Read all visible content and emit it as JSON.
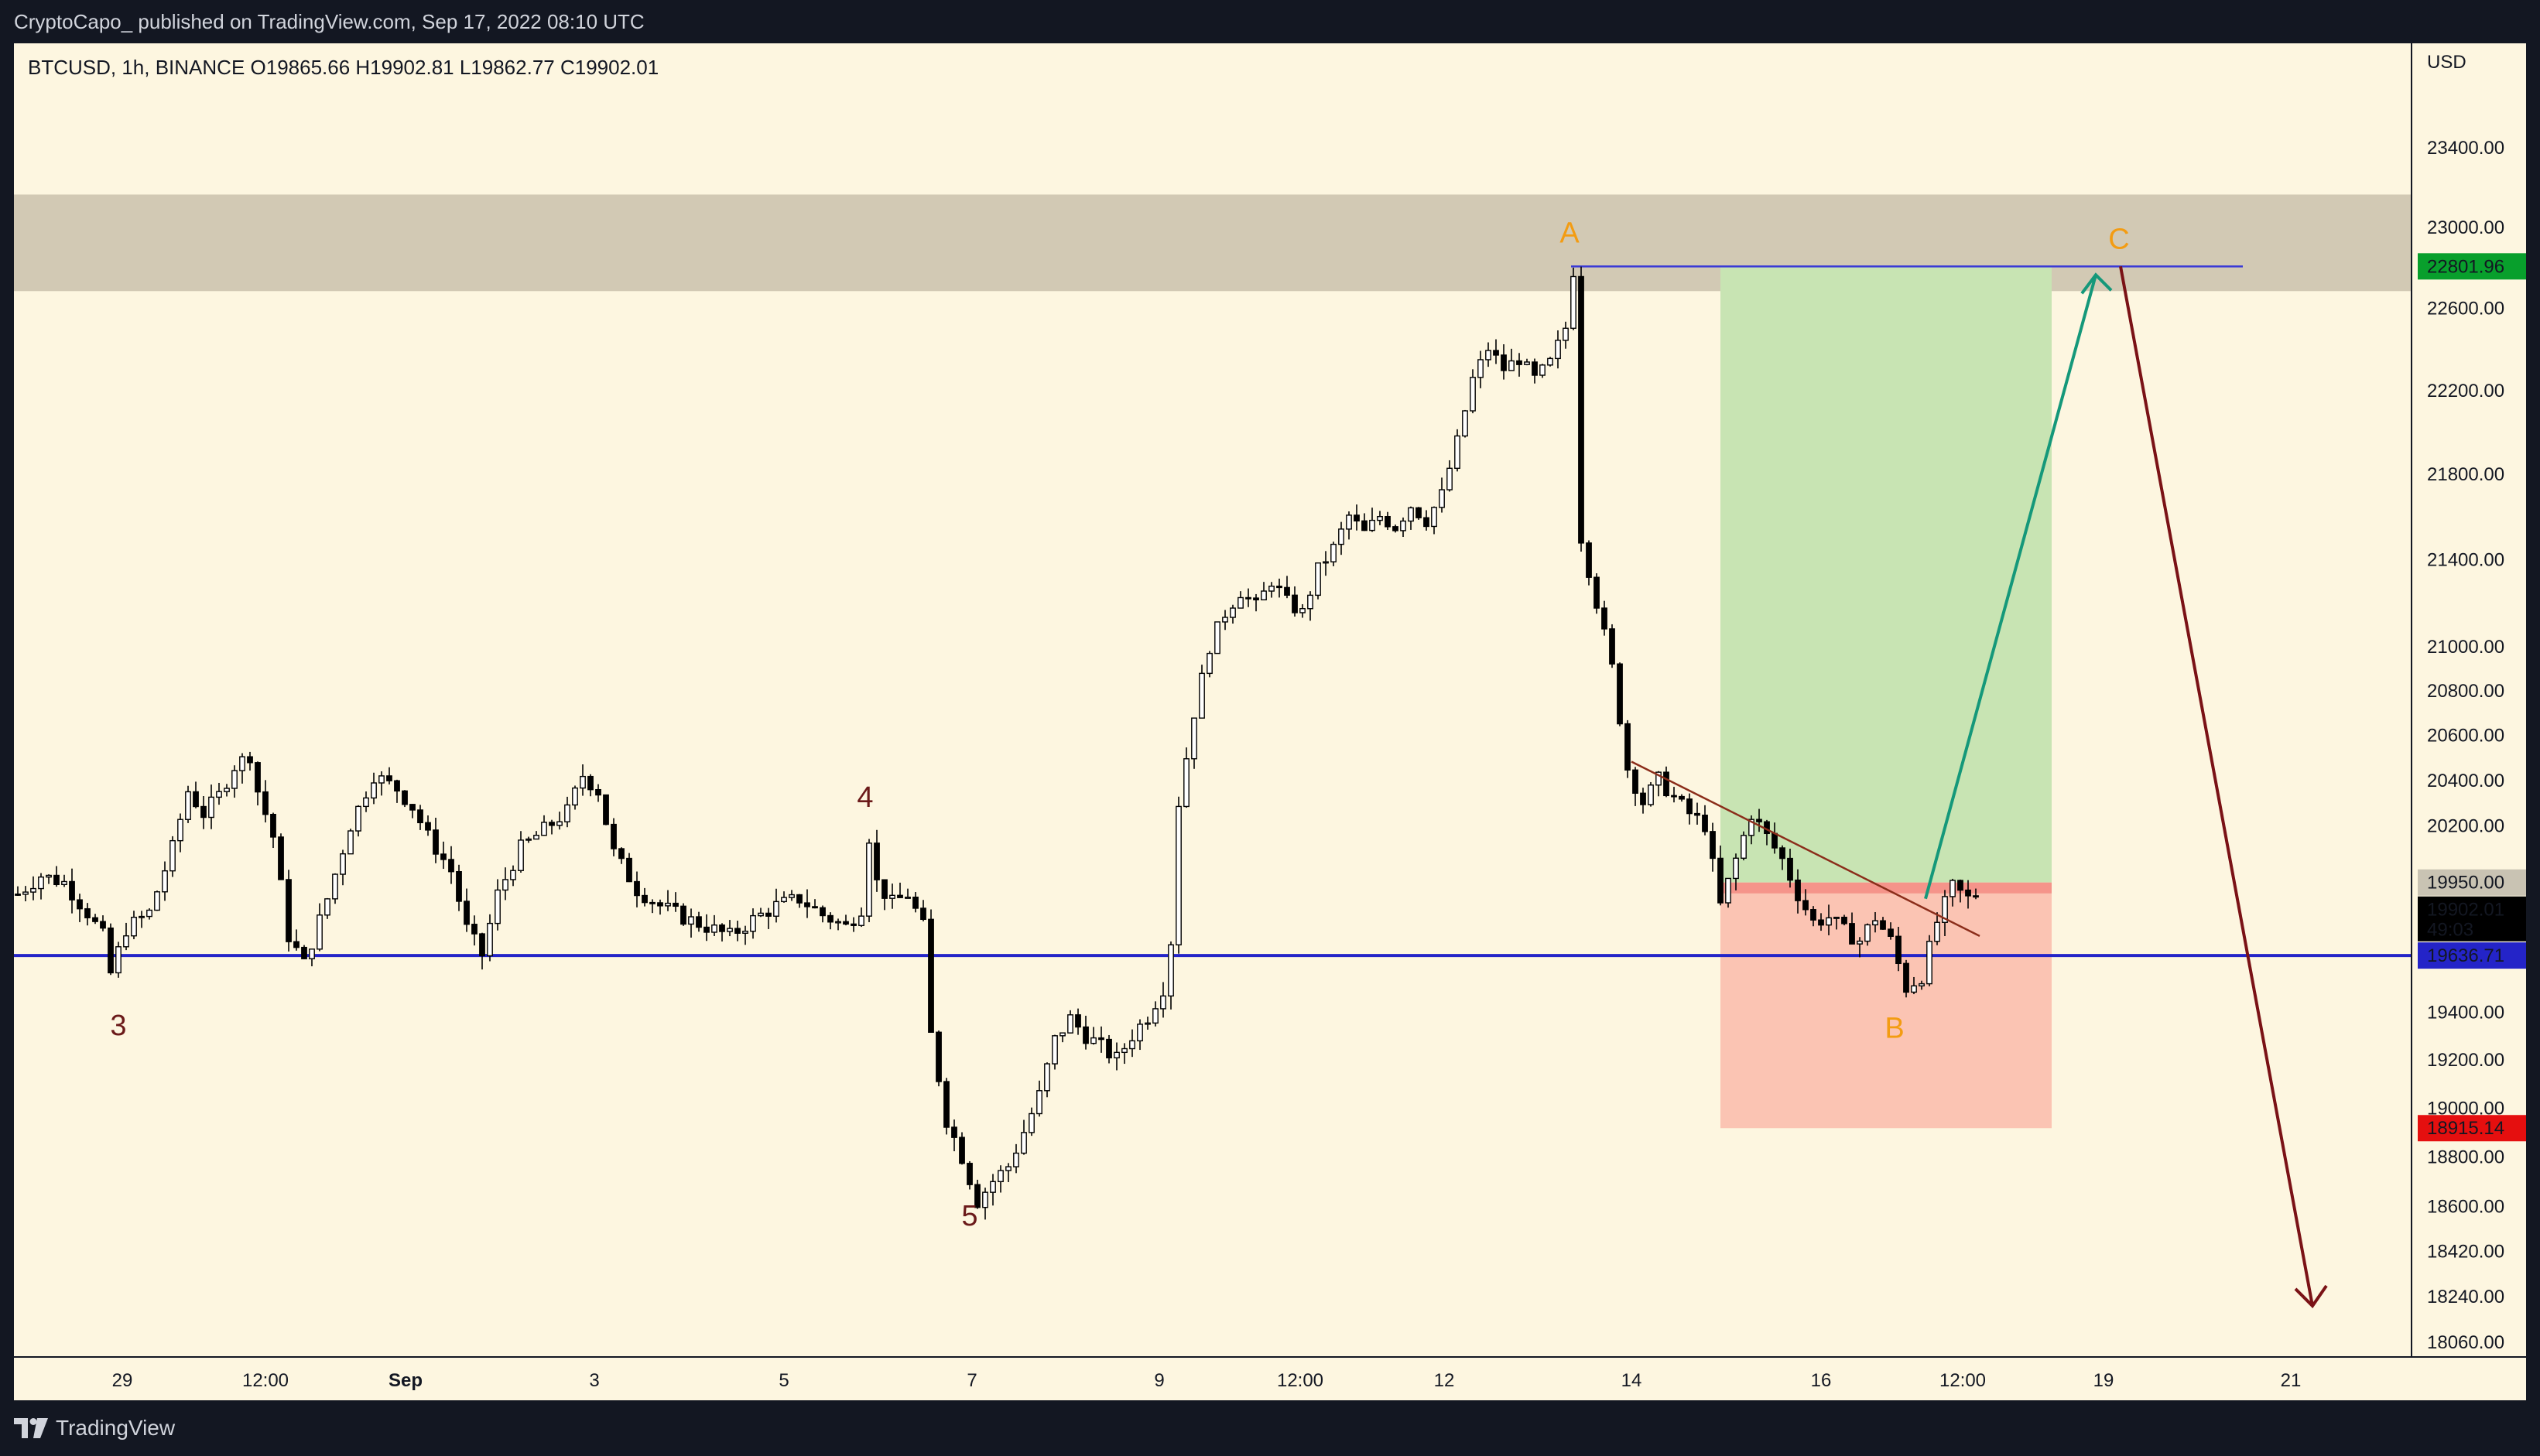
{
  "header": {
    "published": "CryptoCapo_ published on TradingView.com, Sep 17, 2022 08:10 UTC"
  },
  "footer": {
    "brand": "TradingView"
  },
  "chart_data": {
    "type": "candlestick",
    "symbol_line": "BTCUSD, 1h, BINANCE  O19865.66  H19902.81  L19862.77  C19902.01",
    "currency": "USD",
    "y_ticks": [
      "23400.00",
      "23000.00",
      "22600.00",
      "22200.00",
      "21800.00",
      "21400.00",
      "21000.00",
      "20800.00",
      "20600.00",
      "20400.00",
      "20200.00",
      "19400.00",
      "19200.00",
      "19000.00",
      "18800.00",
      "18600.00",
      "18420.00",
      "18240.00",
      "18060.00"
    ],
    "x_ticks": [
      "29",
      "12:00",
      "Sep",
      "3",
      "5",
      "7",
      "9",
      "12:00",
      "12",
      "14",
      "16",
      "12:00",
      "19",
      "21"
    ],
    "price_labels": {
      "target": "22801.96",
      "entry": "19950.00",
      "last": "19902.01",
      "countdown": "49:03",
      "support": "19636.71",
      "stop": "18915.14"
    },
    "wave_labels": [
      "3",
      "4",
      "5",
      "A",
      "B",
      "C"
    ],
    "levels": {
      "resistance_zone": [
        22680,
        23160
      ],
      "support_line": 19636.71,
      "target": 22801.96,
      "entry": 19950.0,
      "stop": 18915.14
    },
    "ylim": [
      18000,
      23700
    ],
    "legend": "none",
    "grid": false,
    "colors": {
      "background": "#fdf6e0",
      "zone": "#d2c9b4",
      "profit": "#c8e4b3",
      "loss": "#fbc4b3",
      "support": "#2424c8",
      "projection_up": "#15987a",
      "projection_down": "#7a1216",
      "wave_orange": "#f39c12",
      "wave_dark": "#6b1a1a"
    },
    "price_path": [
      [
        0,
        19900
      ],
      [
        3,
        19980
      ],
      [
        6,
        19950
      ],
      [
        9,
        19820
      ],
      [
        11,
        19720
      ],
      [
        12,
        19560
      ],
      [
        14,
        19750
      ],
      [
        17,
        19820
      ],
      [
        20,
        20100
      ],
      [
        22,
        20350
      ],
      [
        24,
        20250
      ],
      [
        26,
        20330
      ],
      [
        28,
        20460
      ],
      [
        30,
        20510
      ],
      [
        31,
        20350
      ],
      [
        33,
        20150
      ],
      [
        35,
        19720
      ],
      [
        37,
        19600
      ],
      [
        40,
        19880
      ],
      [
        43,
        20200
      ],
      [
        46,
        20420
      ],
      [
        49,
        20360
      ],
      [
        51,
        20280
      ],
      [
        53,
        20150
      ],
      [
        56,
        20000
      ],
      [
        58,
        19750
      ],
      [
        60,
        19640
      ],
      [
        62,
        19900
      ],
      [
        65,
        20100
      ],
      [
        68,
        20180
      ],
      [
        71,
        20260
      ],
      [
        73,
        20420
      ],
      [
        75,
        20350
      ],
      [
        77,
        20080
      ],
      [
        80,
        19920
      ],
      [
        83,
        19850
      ],
      [
        86,
        19800
      ],
      [
        89,
        19760
      ],
      [
        92,
        19720
      ],
      [
        95,
        19790
      ],
      [
        98,
        19850
      ],
      [
        101,
        19880
      ],
      [
        104,
        19810
      ],
      [
        107,
        19760
      ],
      [
        109,
        19840
      ],
      [
        110,
        20150
      ],
      [
        111,
        19950
      ],
      [
        113,
        19860
      ],
      [
        115,
        19900
      ],
      [
        117,
        19760
      ],
      [
        118,
        19300
      ],
      [
        120,
        18950
      ],
      [
        122,
        18800
      ],
      [
        124,
        18620
      ],
      [
        126,
        18700
      ],
      [
        128,
        18760
      ],
      [
        130,
        18900
      ],
      [
        132,
        19050
      ],
      [
        134,
        19280
      ],
      [
        136,
        19370
      ],
      [
        138,
        19300
      ],
      [
        140,
        19250
      ],
      [
        142,
        19200
      ],
      [
        144,
        19300
      ],
      [
        146,
        19380
      ],
      [
        148,
        19500
      ],
      [
        149,
        19700
      ],
      [
        150,
        20300
      ],
      [
        152,
        20700
      ],
      [
        154,
        21000
      ],
      [
        156,
        21150
      ],
      [
        158,
        21250
      ],
      [
        160,
        21180
      ],
      [
        162,
        21300
      ],
      [
        164,
        21200
      ],
      [
        166,
        21150
      ],
      [
        168,
        21350
      ],
      [
        170,
        21450
      ],
      [
        172,
        21600
      ],
      [
        174,
        21520
      ],
      [
        176,
        21600
      ],
      [
        178,
        21550
      ],
      [
        180,
        21650
      ],
      [
        182,
        21580
      ],
      [
        184,
        21700
      ],
      [
        186,
        21950
      ],
      [
        188,
        22250
      ],
      [
        190,
        22400
      ],
      [
        192,
        22300
      ],
      [
        194,
        22350
      ],
      [
        196,
        22250
      ],
      [
        198,
        22330
      ],
      [
        200,
        22500
      ],
      [
        201,
        22780
      ],
      [
        202,
        21500
      ],
      [
        204,
        21200
      ],
      [
        206,
        20900
      ],
      [
        208,
        20450
      ],
      [
        210,
        20300
      ],
      [
        212,
        20400
      ],
      [
        214,
        20320
      ],
      [
        216,
        20250
      ],
      [
        218,
        20200
      ],
      [
        220,
        19850
      ],
      [
        222,
        20050
      ],
      [
        224,
        20250
      ],
      [
        226,
        20150
      ],
      [
        228,
        20050
      ],
      [
        230,
        19900
      ],
      [
        232,
        19780
      ],
      [
        234,
        19800
      ],
      [
        236,
        19740
      ],
      [
        238,
        19700
      ],
      [
        240,
        19800
      ],
      [
        242,
        19700
      ],
      [
        244,
        19500
      ],
      [
        246,
        19550
      ],
      [
        248,
        19780
      ],
      [
        250,
        19930
      ],
      [
        252,
        19880
      ],
      [
        253,
        19902
      ]
    ]
  }
}
